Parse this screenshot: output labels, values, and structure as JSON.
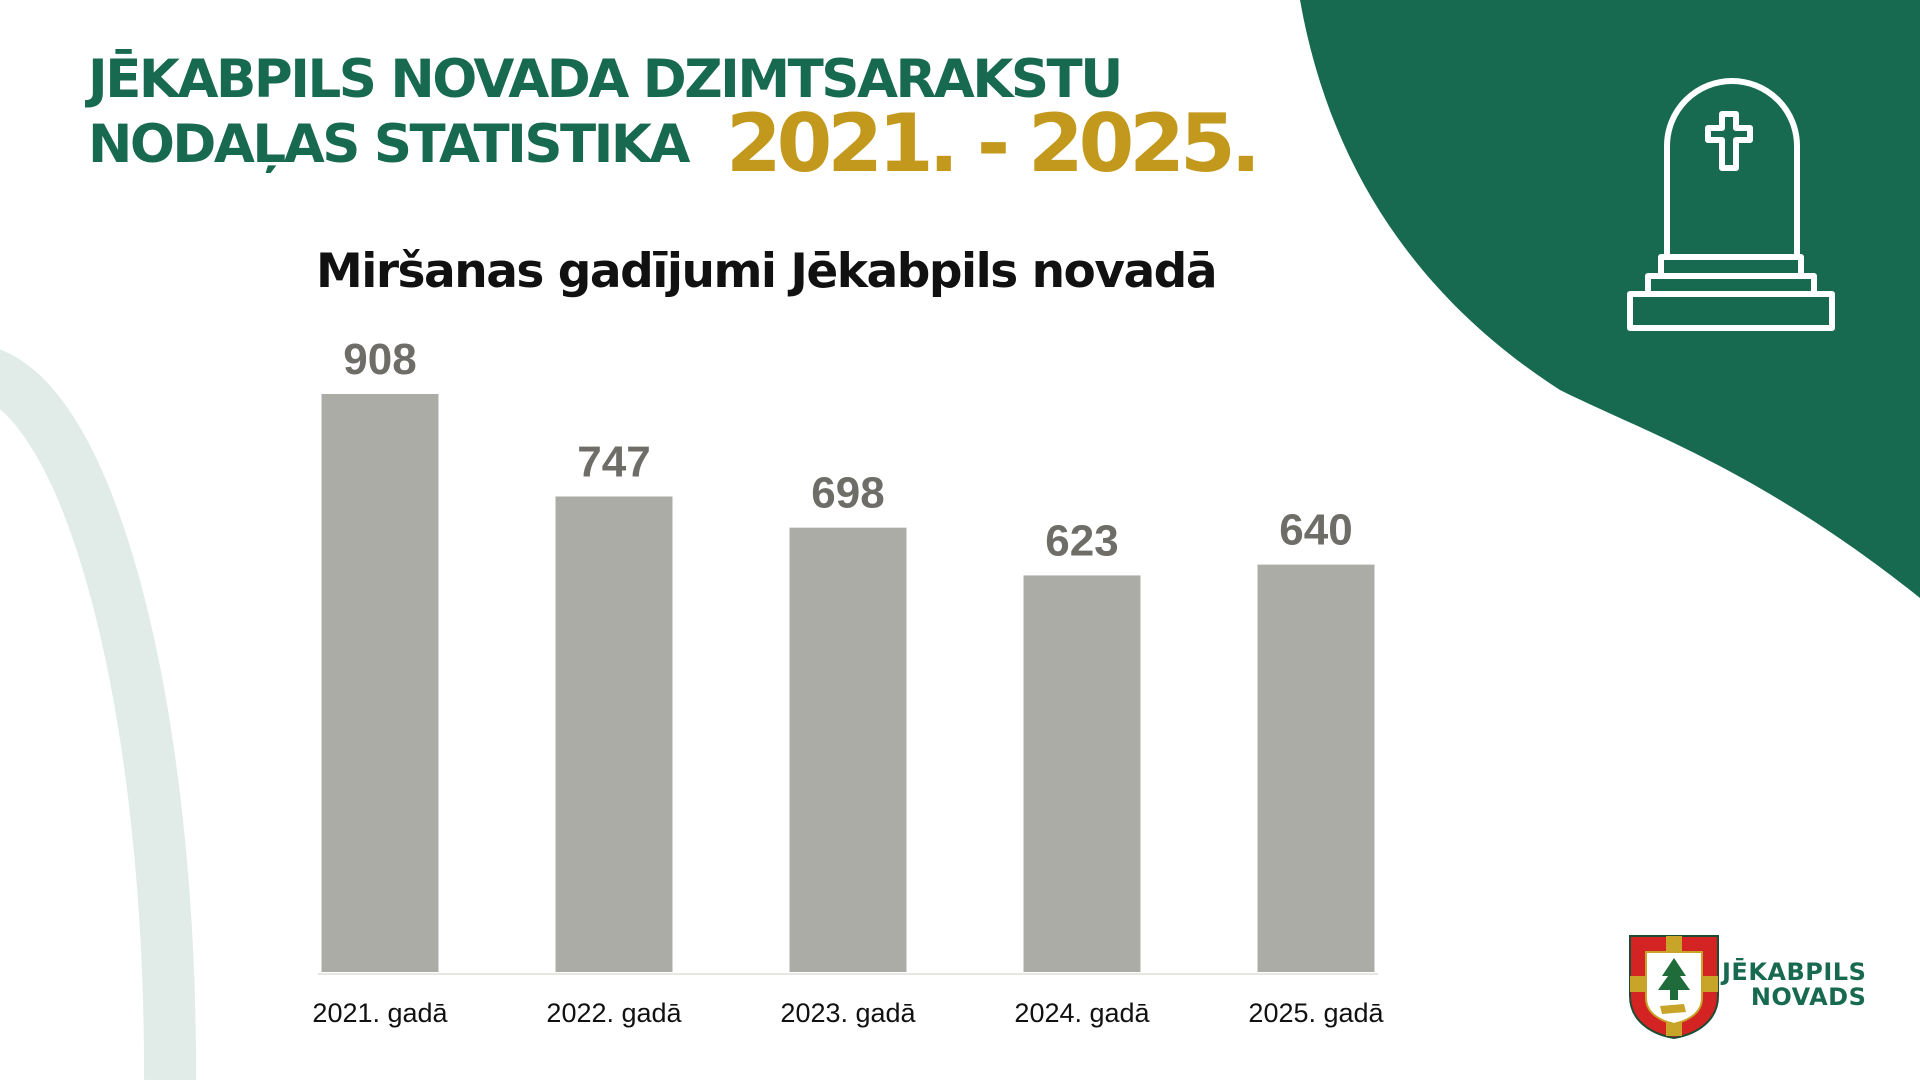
{
  "header": {
    "title_line1": "JĒKABPILS NOVADA DZIMTSARAKSTU",
    "title_line2": "NODAĻAS STATISTIKA",
    "year_range": "2021. - 2025."
  },
  "colors": {
    "brand_green": "#176a50",
    "gold": "#c3991d",
    "bar": "#acaca6",
    "bar_label": "#6f6d67",
    "arc": "#e1ebe7"
  },
  "icons": [
    "gravestone-icon",
    "coat-of-arms-logo"
  ],
  "logo": {
    "line1": "JĒKABPILS",
    "line2": "NOVADS"
  },
  "chart_data": {
    "type": "bar",
    "title": "Miršanas gadījumi Jēkabpils novadā",
    "categories": [
      "2021. gadā",
      "2022. gadā",
      "2023. gadā",
      "2024. gadā",
      "2025. gadā"
    ],
    "values": [
      908,
      747,
      698,
      623,
      640
    ],
    "ylim": [
      0,
      908
    ],
    "grid": false,
    "legend": "none",
    "data_labels": true
  }
}
